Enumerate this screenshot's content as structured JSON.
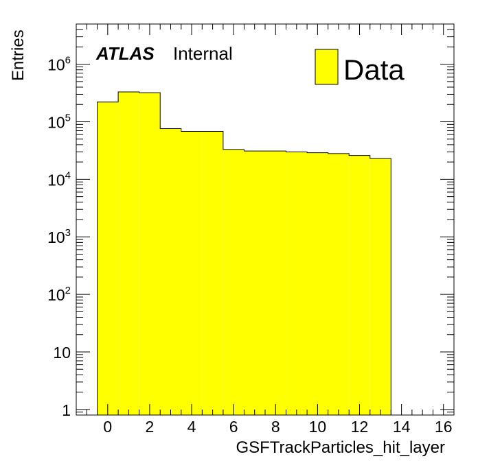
{
  "chart_data": {
    "type": "bar",
    "style": "histogram",
    "log_y": true,
    "xlabel": "GSFTrackParticles_hit_layer",
    "ylabel": "Entries",
    "xlim": [
      -1.5,
      16.5
    ],
    "ylim": [
      0.8,
      5000000
    ],
    "x_ticks": [
      0,
      2,
      4,
      6,
      8,
      10,
      12,
      14,
      16
    ],
    "x_tick_labels": [
      "0",
      "2",
      "4",
      "6",
      "8",
      "10",
      "12",
      "14",
      "16"
    ],
    "y_ticks": [
      1,
      10,
      100,
      1000,
      10000,
      100000,
      1000000
    ],
    "y_tick_labels": [
      {
        "base": "1",
        "exp": ""
      },
      {
        "base": "10",
        "exp": ""
      },
      {
        "base": "10",
        "exp": "2"
      },
      {
        "base": "10",
        "exp": "3"
      },
      {
        "base": "10",
        "exp": "4"
      },
      {
        "base": "10",
        "exp": "5"
      },
      {
        "base": "10",
        "exp": "6"
      }
    ],
    "bin_edges": [
      -0.5,
      0.5,
      1.5,
      2.5,
      3.5,
      4.5,
      5.5,
      6.5,
      7.5,
      8.5,
      9.5,
      10.5,
      11.5,
      12.5,
      13.5
    ],
    "series": [
      {
        "name": "Data",
        "color": "#ffff00",
        "values": [
          220000,
          330000,
          320000,
          76000,
          68000,
          68000,
          33000,
          31000,
          31000,
          30000,
          29000,
          28000,
          26000,
          23000
        ]
      }
    ],
    "legend": {
      "position": "top-right",
      "label": "Data"
    },
    "annotation": {
      "bold_text": "ATLAS",
      "text": "Internal",
      "position": "top-left"
    }
  }
}
